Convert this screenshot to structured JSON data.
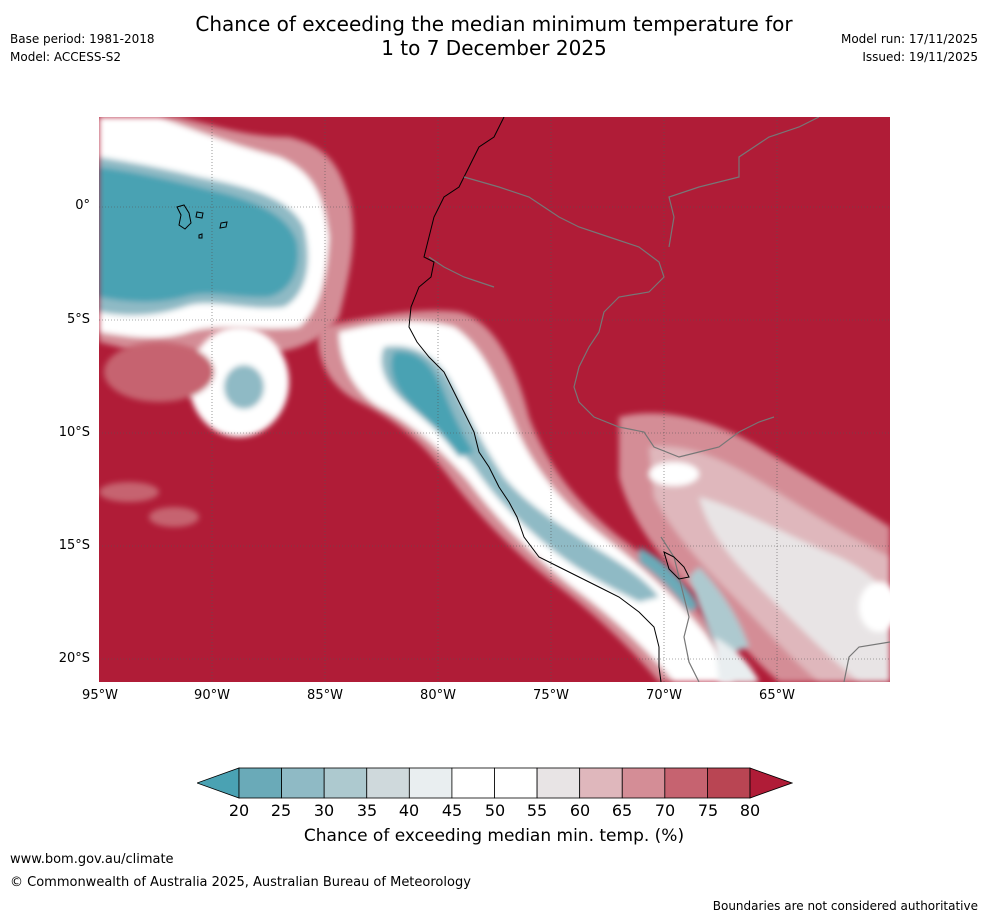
{
  "header": {
    "title_line1": "Chance of exceeding the median minimum temperature for",
    "title_line2": "1 to 7 December 2025",
    "base_period": "Base period: 1981-2018",
    "model": "Model: ACCESS-S2",
    "model_run": "Model run: 17/11/2025",
    "issued": "Issued: 19/11/2025"
  },
  "map": {
    "lat_labels": [
      "0°",
      "5°S",
      "10°S",
      "15°S",
      "20°S"
    ],
    "lon_labels": [
      "95°W",
      "90°W",
      "85°W",
      "80°W",
      "75°W",
      "70°W",
      "65°W"
    ]
  },
  "legend": {
    "label": "Chance of exceeding median min. temp. (%)",
    "ticks": [
      "20",
      "25",
      "30",
      "35",
      "40",
      "45",
      "50",
      "55",
      "60",
      "65",
      "70",
      "75",
      "80"
    ],
    "colors": [
      "#4aa2b3",
      "#6aaab8",
      "#8fbac5",
      "#adc9cf",
      "#cfd9dc",
      "#e9eef0",
      "#ffffff",
      "#ffffff",
      "#e8e4e5",
      "#dfb7bc",
      "#d48d96",
      "#c66370",
      "#b94553",
      "#b01c37"
    ]
  },
  "footer": {
    "website": "www.bom.gov.au/climate",
    "copyright": "© Commonwealth of Australia 2025, Australian Bureau of Meteorology",
    "disclaimer": "Boundaries are not considered authoritative"
  }
}
